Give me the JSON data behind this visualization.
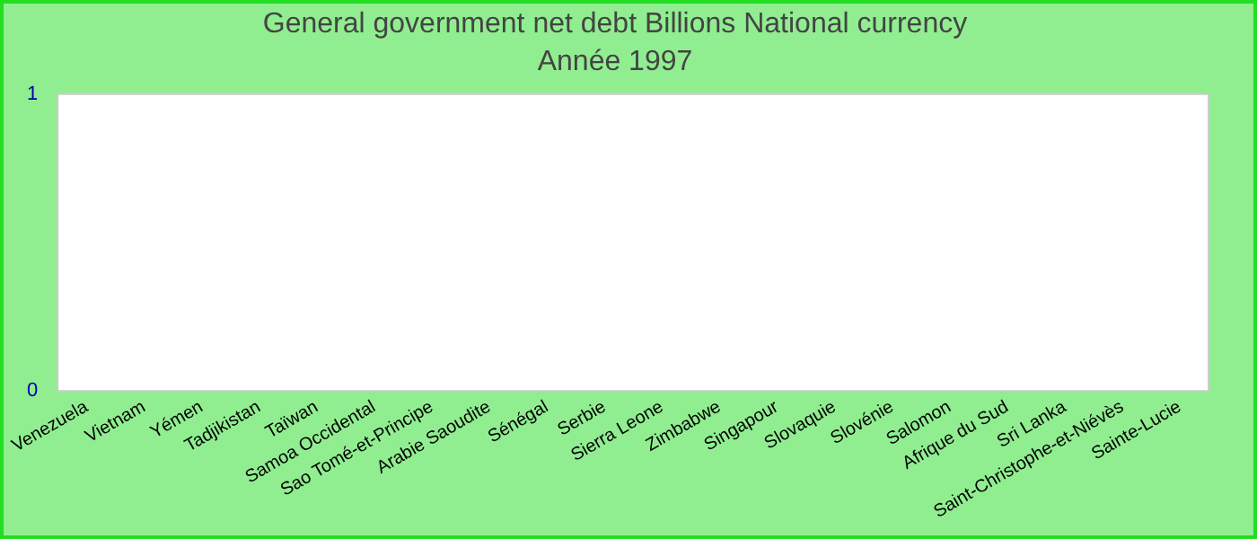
{
  "chart_data": {
    "type": "bar",
    "title": "General government net debt Billions National currency",
    "subtitle": "Année 1997",
    "categories": [
      "Venezuela",
      "Vietnam",
      "Yémen",
      "Tadjikistan",
      "Taïwan",
      "Samoa Occidental",
      "Sao Tomé-et-Principe",
      "Arabie Saoudite",
      "Sénégal",
      "Serbie",
      "Sierra Leone",
      "Zimbabwe",
      "Singapour",
      "Slovaquie",
      "Slovénie",
      "Salomon",
      "Afrique du Sud",
      "Sri Lanka",
      "Saint-Christophe-et-Niévès",
      "Sainte-Lucie"
    ],
    "values": [
      null,
      null,
      null,
      null,
      null,
      null,
      null,
      null,
      null,
      null,
      null,
      null,
      null,
      null,
      null,
      null,
      null,
      null,
      null,
      null
    ],
    "ylim": [
      0,
      1
    ],
    "yticks": [
      0,
      1
    ],
    "grid": false,
    "legend": false
  }
}
